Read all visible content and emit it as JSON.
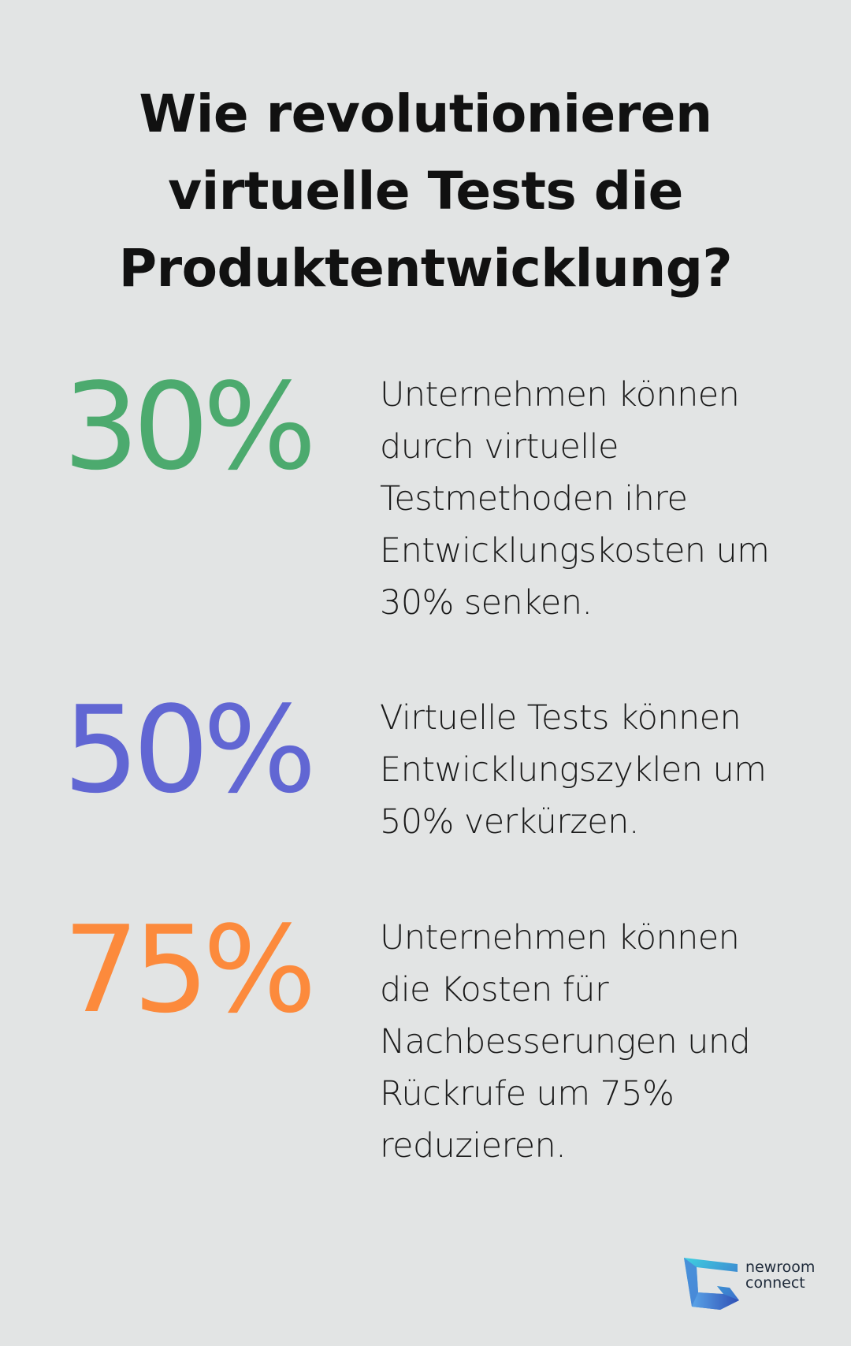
{
  "title": "Wie revolutionieren virtuelle Tests die Produktentwicklung?",
  "stats": [
    {
      "value": "30%",
      "color": "#4caa6e",
      "lines": [
        "Unternehmen können",
        "durch virtuelle",
        "Testmethoden ihre",
        "Entwicklungskosten um",
        "30% senken."
      ]
    },
    {
      "value": "50%",
      "color": "#6166d3",
      "lines": [
        "Virtuelle Tests können",
        "Entwicklungszyklen um",
        "50% verkürzen."
      ]
    },
    {
      "value": "75%",
      "color": "#fc8a3c",
      "lines": [
        "Unternehmen können",
        "die Kosten für",
        "Nachbesserungen und",
        "Rückrufe um 75%",
        "reduzieren."
      ]
    }
  ],
  "logo": {
    "line1": "newroom",
    "line2": "connect",
    "icon": "newroom-connect-logo-icon"
  }
}
